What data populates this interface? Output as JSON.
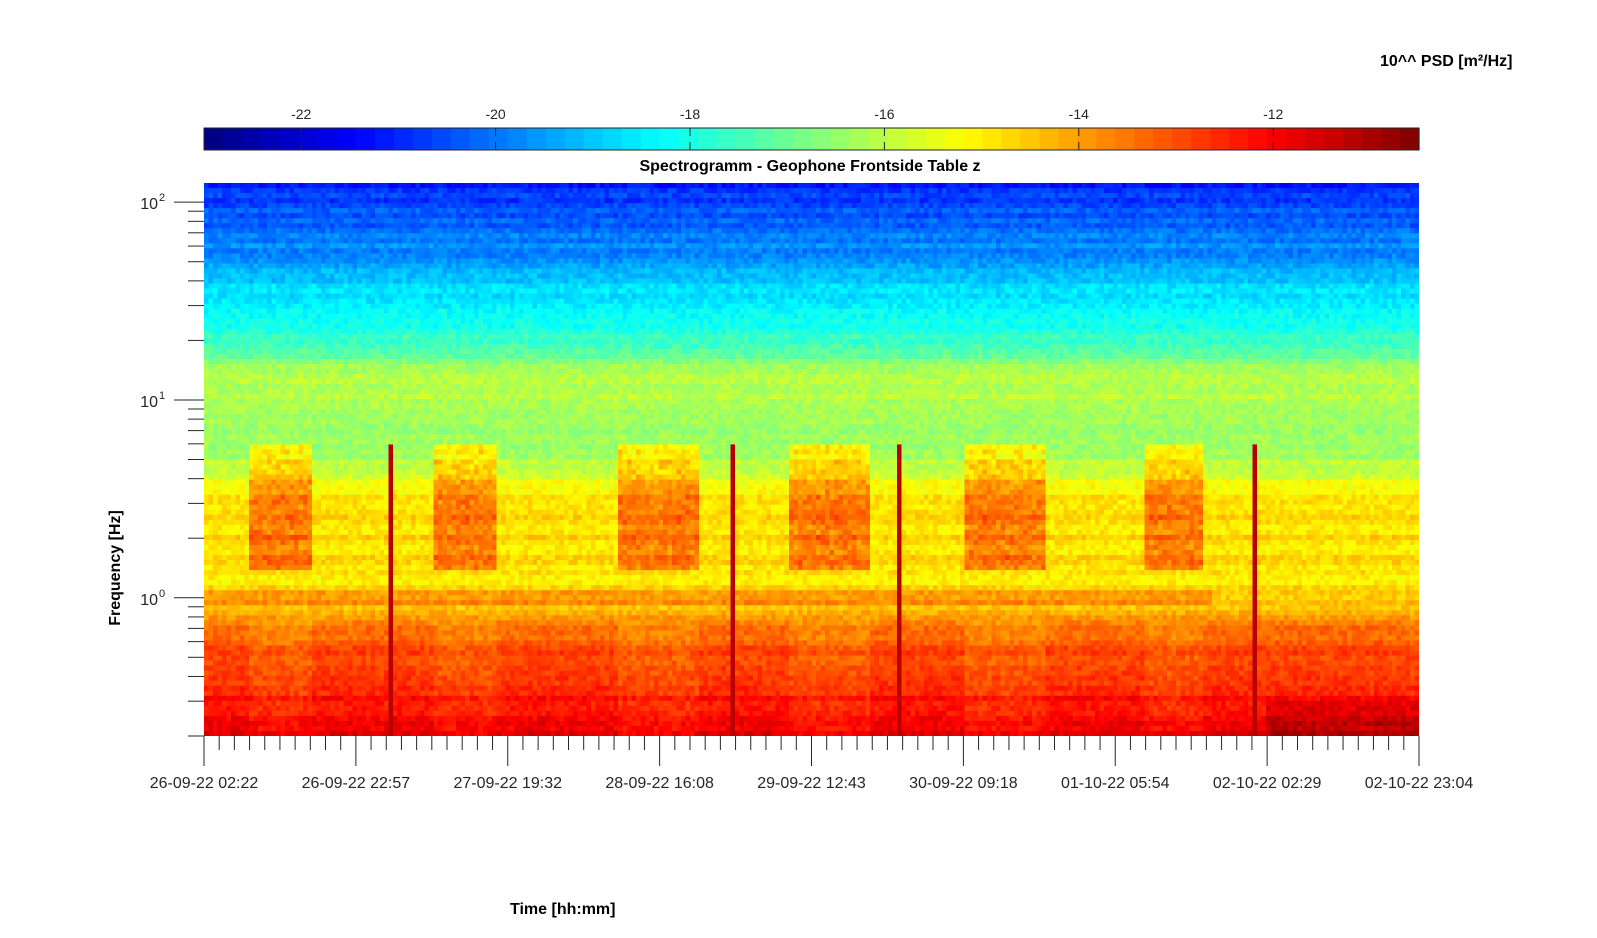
{
  "colorbar": {
    "title": "10^^ PSD [m²/Hz]",
    "range": [
      -23.0,
      -10.5
    ],
    "ticks": [
      -22,
      -20,
      -18,
      -16,
      -14,
      -12
    ],
    "colormap": "jet"
  },
  "chart_data": {
    "type": "heatmap",
    "title": "Spectrogramm - Geophone Frontside Table z",
    "xlabel": "Time [hh:mm]",
    "ylabel": "Frequency [Hz]",
    "yscale": "log",
    "ylim": [
      0.2,
      125
    ],
    "y_tick_labels": [
      "10",
      "10",
      "10"
    ],
    "y_tick_exponents": [
      "0",
      "1",
      "2"
    ],
    "y_tick_values": [
      1,
      10,
      100
    ],
    "x_tick_labels": [
      "26-09-22 02:22",
      "26-09-22 22:57",
      "27-09-22 19:32",
      "28-09-22 16:08",
      "29-09-22 12:43",
      "30-09-22 09:18",
      "01-10-22 05:54",
      "02-10-22 02:29",
      "02-10-22 23:04"
    ],
    "x_range_days": [
      0,
      6.86
    ],
    "value_units": "log10 PSD [m²/Hz]",
    "psd_profile": [
      {
        "freq_hz": 0.2,
        "log_psd": -11.8
      },
      {
        "freq_hz": 0.5,
        "log_psd": -12.8
      },
      {
        "freq_hz": 0.75,
        "log_psd": -13.5
      },
      {
        "freq_hz": 1.0,
        "log_psd": -14.8
      },
      {
        "freq_hz": 3.0,
        "log_psd": -14.8
      },
      {
        "freq_hz": 5.0,
        "log_psd": -16.2
      },
      {
        "freq_hz": 7.5,
        "log_psd": -16.5
      },
      {
        "freq_hz": 12.5,
        "log_psd": -16.0
      },
      {
        "freq_hz": 20,
        "log_psd": -17.6
      },
      {
        "freq_hz": 50,
        "log_psd": -19.5
      },
      {
        "freq_hz": 125,
        "log_psd": -21.0
      }
    ],
    "daytime_activity_days": [
      [
        0.25,
        0.6
      ],
      [
        1.3,
        1.65
      ],
      [
        2.35,
        2.8
      ],
      [
        3.3,
        3.75
      ],
      [
        4.3,
        4.75
      ],
      [
        5.3,
        5.65
      ]
    ],
    "transient_events_days": [
      1.06,
      2.99,
      3.93,
      5.93
    ]
  }
}
